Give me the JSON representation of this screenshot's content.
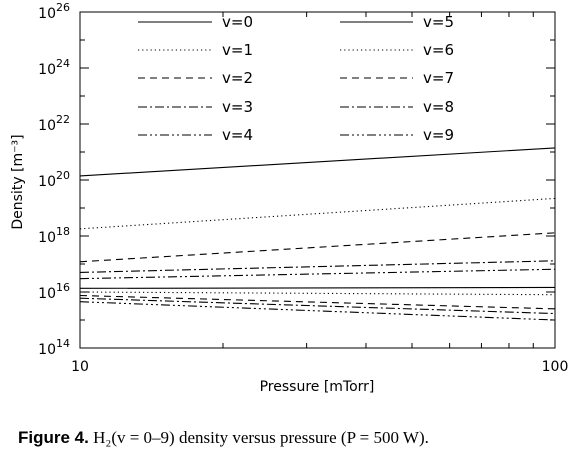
{
  "chart_data": {
    "type": "line",
    "title": "",
    "xlabel": "Pressure [mTorr]",
    "ylabel": "Density [m⁻³]",
    "x_scale": "log",
    "y_scale": "log",
    "xlim": [
      10,
      100
    ],
    "ylim": [
      100000000000000.0,
      1e+26
    ],
    "x_ticks": [
      {
        "value": 10,
        "label": "10"
      },
      {
        "value": 100,
        "label": "100"
      }
    ],
    "y_ticks": [
      {
        "value": 100000000000000.0,
        "base": "10",
        "exp": "14"
      },
      {
        "value": 1e+16,
        "base": "10",
        "exp": "16"
      },
      {
        "value": 1e+18,
        "base": "10",
        "exp": "18"
      },
      {
        "value": 1e+20,
        "base": "10",
        "exp": "20"
      },
      {
        "value": 1e+22,
        "base": "10",
        "exp": "22"
      },
      {
        "value": 1e+24,
        "base": "10",
        "exp": "24"
      },
      {
        "value": 1e+26,
        "base": "10",
        "exp": "26"
      }
    ],
    "legend_position": "top",
    "legend_columns": 2,
    "grid": false,
    "series": [
      {
        "name": "v=0",
        "dash": "solid",
        "x": [
          10,
          100
        ],
        "y": [
          1.4e+20,
          1.4e+21
        ]
      },
      {
        "name": "v=1",
        "dash": "dotted",
        "x": [
          10,
          100
        ],
        "y": [
          1.8e+18,
          2.2e+19
        ]
      },
      {
        "name": "v=2",
        "dash": "dashed",
        "x": [
          10,
          100
        ],
        "y": [
          1.2e+17,
          1.3e+18
        ]
      },
      {
        "name": "v=3",
        "dash": "dash-dot",
        "x": [
          10,
          100
        ],
        "y": [
          5e+16,
          1.3e+17
        ]
      },
      {
        "name": "v=4",
        "dash": "dash-dot-dot",
        "x": [
          10,
          100
        ],
        "y": [
          3e+16,
          6.5e+16
        ]
      },
      {
        "name": "v=5",
        "dash": "solid",
        "x": [
          10,
          100
        ],
        "y": [
          1.35e+16,
          1.45e+16
        ]
      },
      {
        "name": "v=6",
        "dash": "dotted",
        "x": [
          10,
          100
        ],
        "y": [
          1e+16,
          8000000000000000.0
        ]
      },
      {
        "name": "v=7",
        "dash": "dashed",
        "x": [
          10,
          100
        ],
        "y": [
          7500000000000000.0,
          2500000000000000.0
        ]
      },
      {
        "name": "v=8",
        "dash": "dash-dot",
        "x": [
          10,
          100
        ],
        "y": [
          6000000000000000.0,
          1700000000000000.0
        ]
      },
      {
        "name": "v=9",
        "dash": "dash-dot-dot-dot",
        "x": [
          10,
          100
        ],
        "y": [
          4500000000000000.0,
          1000000000000000.0
        ]
      }
    ]
  },
  "caption": {
    "lead": "Figure 4.",
    "text": "H₂(v = 0–9) density versus pressure (P = 500 W)."
  }
}
